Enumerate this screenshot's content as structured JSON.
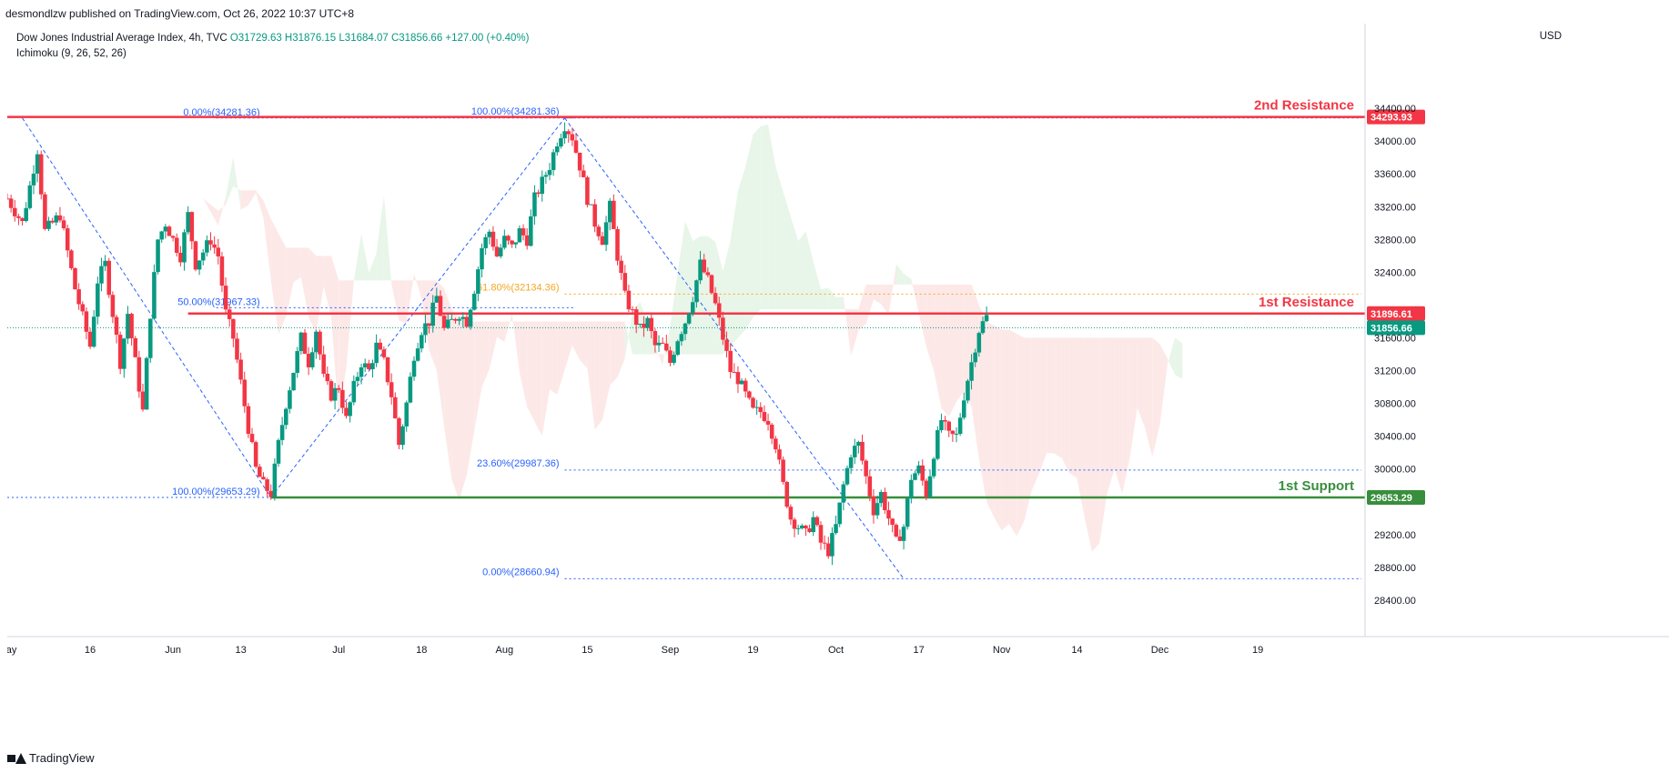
{
  "header": {
    "published": "desmondlzw published on TradingView.com, Oct 26, 2022 10:37 UTC+8"
  },
  "legend": {
    "symbol": "Dow Jones Industrial Average Index, 4h, TVC",
    "ohlc": "O31729.63 H31876.15 L31684.07 C31856.66 +127.00 (+0.40%)",
    "indicator": "Ichimoku (9, 26, 52, 26)"
  },
  "currency": "USD",
  "footer": {
    "brand": "TradingView"
  },
  "colors": {
    "up": "#089981",
    "down": "#f23645",
    "resistance": "#f23645",
    "support": "#388e3c",
    "fib": "#2962ff",
    "fib_golden": "#f5a623",
    "cloud_bull": "#e8f5e9",
    "cloud_bear": "#fde8e8",
    "current_price": "#089981"
  },
  "chart_data": {
    "type": "candlestick",
    "ylim": [
      28000,
      35100
    ],
    "price_ticks": [
      {
        "value": 34400,
        "label": "34400.00"
      },
      {
        "value": 34000,
        "label": "34000.00"
      },
      {
        "value": 33600,
        "label": "33600.00"
      },
      {
        "value": 33200,
        "label": "33200.00"
      },
      {
        "value": 32800,
        "label": "32800.00"
      },
      {
        "value": 32400,
        "label": "32400.00"
      },
      {
        "value": 31600,
        "label": "31600.00"
      },
      {
        "value": 31200,
        "label": "31200.00"
      },
      {
        "value": 30800,
        "label": "30800.00"
      },
      {
        "value": 30400,
        "label": "30400.00"
      },
      {
        "value": 30000,
        "label": "30000.00"
      },
      {
        "value": 29200,
        "label": "29200.00"
      },
      {
        "value": 28800,
        "label": "28800.00"
      },
      {
        "value": 28400,
        "label": "28400.00"
      }
    ],
    "time_ticks": [
      {
        "t": 0,
        "label": "May"
      },
      {
        "t": 11,
        "label": "16"
      },
      {
        "t": 22,
        "label": "Jun"
      },
      {
        "t": 31,
        "label": "13"
      },
      {
        "t": 44,
        "label": "Jul"
      },
      {
        "t": 55,
        "label": "18"
      },
      {
        "t": 66,
        "label": "Aug"
      },
      {
        "t": 77,
        "label": "15"
      },
      {
        "t": 88,
        "label": "Sep"
      },
      {
        "t": 99,
        "label": "19"
      },
      {
        "t": 110,
        "label": "Oct"
      },
      {
        "t": 121,
        "label": "17"
      },
      {
        "t": 132,
        "label": "Nov"
      },
      {
        "t": 142,
        "label": "14"
      },
      {
        "t": 153,
        "label": "Dec"
      },
      {
        "t": 166,
        "label": "19"
      }
    ],
    "t_max": 180,
    "price_path": [
      [
        0,
        33300
      ],
      [
        2,
        33000
      ],
      [
        4,
        33900
      ],
      [
        5,
        32900
      ],
      [
        7,
        33100
      ],
      [
        9,
        32200
      ],
      [
        11,
        31500
      ],
      [
        12,
        32300
      ],
      [
        13,
        32500
      ],
      [
        15,
        31300
      ],
      [
        16,
        31900
      ],
      [
        18,
        30700
      ],
      [
        19,
        31900
      ],
      [
        20,
        32800
      ],
      [
        21,
        33000
      ],
      [
        23,
        32600
      ],
      [
        24,
        33100
      ],
      [
        25,
        32500
      ],
      [
        27,
        32800
      ],
      [
        28,
        32600
      ],
      [
        29,
        31900
      ],
      [
        30,
        31600
      ],
      [
        32,
        30500
      ],
      [
        33,
        30000
      ],
      [
        34,
        29800
      ],
      [
        35,
        29700
      ],
      [
        36,
        30300
      ],
      [
        37,
        30800
      ],
      [
        38,
        31200
      ],
      [
        39,
        31600
      ],
      [
        40,
        31300
      ],
      [
        41,
        31700
      ],
      [
        42,
        31100
      ],
      [
        43,
        30900
      ],
      [
        44,
        31000
      ],
      [
        45,
        30600
      ],
      [
        46,
        31000
      ],
      [
        47,
        31300
      ],
      [
        48,
        31200
      ],
      [
        49,
        31500
      ],
      [
        50,
        31300
      ],
      [
        51,
        30900
      ],
      [
        52,
        30300
      ],
      [
        53,
        30800
      ],
      [
        54,
        31400
      ],
      [
        55,
        31700
      ],
      [
        56,
        31800
      ],
      [
        57,
        32100
      ],
      [
        58,
        31700
      ],
      [
        59,
        31800
      ],
      [
        60,
        31900
      ],
      [
        61,
        31800
      ],
      [
        62,
        32200
      ],
      [
        63,
        32700
      ],
      [
        64,
        32900
      ],
      [
        65,
        32600
      ],
      [
        66,
        32800
      ],
      [
        67,
        32700
      ],
      [
        68,
        32900
      ],
      [
        69,
        32800
      ],
      [
        70,
        33300
      ],
      [
        71,
        33500
      ],
      [
        72,
        33700
      ],
      [
        73,
        34000
      ],
      [
        74,
        34200
      ],
      [
        75,
        34050
      ],
      [
        76,
        33700
      ],
      [
        77,
        33300
      ],
      [
        78,
        33000
      ],
      [
        79,
        32800
      ],
      [
        80,
        33200
      ],
      [
        81,
        32600
      ],
      [
        82,
        32100
      ],
      [
        83,
        31900
      ],
      [
        84,
        31700
      ],
      [
        85,
        31800
      ],
      [
        86,
        31500
      ],
      [
        87,
        31500
      ],
      [
        88,
        31300
      ],
      [
        89,
        31600
      ],
      [
        90,
        31800
      ],
      [
        91,
        32100
      ],
      [
        92,
        32500
      ],
      [
        93,
        32300
      ],
      [
        94,
        32000
      ],
      [
        95,
        31600
      ],
      [
        96,
        31200
      ],
      [
        97,
        31100
      ],
      [
        98,
        30900
      ],
      [
        99,
        30700
      ],
      [
        100,
        30700
      ],
      [
        101,
        30600
      ],
      [
        102,
        30300
      ],
      [
        103,
        29800
      ],
      [
        104,
        29400
      ],
      [
        105,
        29300
      ],
      [
        106,
        29200
      ],
      [
        107,
        29400
      ],
      [
        108,
        29100
      ],
      [
        109,
        29000
      ],
      [
        110,
        29300
      ],
      [
        111,
        29800
      ],
      [
        112,
        30200
      ],
      [
        113,
        30300
      ],
      [
        114,
        29900
      ],
      [
        115,
        29500
      ],
      [
        116,
        29700
      ],
      [
        117,
        29400
      ],
      [
        118,
        29100
      ],
      [
        119,
        29300
      ],
      [
        120,
        29900
      ],
      [
        121,
        30000
      ],
      [
        122,
        29700
      ],
      [
        123,
        30200
      ],
      [
        124,
        30600
      ],
      [
        125,
        30400
      ],
      [
        126,
        30400
      ],
      [
        127,
        30900
      ],
      [
        128,
        31300
      ],
      [
        129,
        31700
      ],
      [
        130,
        31856
      ]
    ],
    "resistance_levels": [
      {
        "name": "2nd Resistance",
        "value": 34293.93,
        "label": "34293.93"
      },
      {
        "name": "1st Resistance",
        "value": 31896.61,
        "label": "31896.61"
      }
    ],
    "support_levels": [
      {
        "name": "1st Support",
        "value": 29653.29,
        "label": "29653.29"
      }
    ],
    "current_price": {
      "value": 31856.66,
      "label": "31856.66"
    },
    "fib_retracement_1": [
      {
        "ratio": "0.00%",
        "value": 34281.36,
        "label": "0.00%(34281.36)"
      },
      {
        "ratio": "50.00%",
        "value": 31967.33,
        "label": "50.00%(31967.33)"
      },
      {
        "ratio": "100.00%",
        "value": 29653.29,
        "label": "100.00%(29653.29)"
      }
    ],
    "fib_retracement_2": [
      {
        "ratio": "100.00%",
        "value": 34281.36,
        "label": "100.00%(34281.36)"
      },
      {
        "ratio": "61.80%",
        "value": 32134.36,
        "label": "61.80%(32134.36)"
      },
      {
        "ratio": "23.60%",
        "value": 29987.36,
        "label": "23.60%(29987.36)"
      },
      {
        "ratio": "0.00%",
        "value": 28660.94,
        "label": "0.00%(28660.94)"
      }
    ]
  }
}
